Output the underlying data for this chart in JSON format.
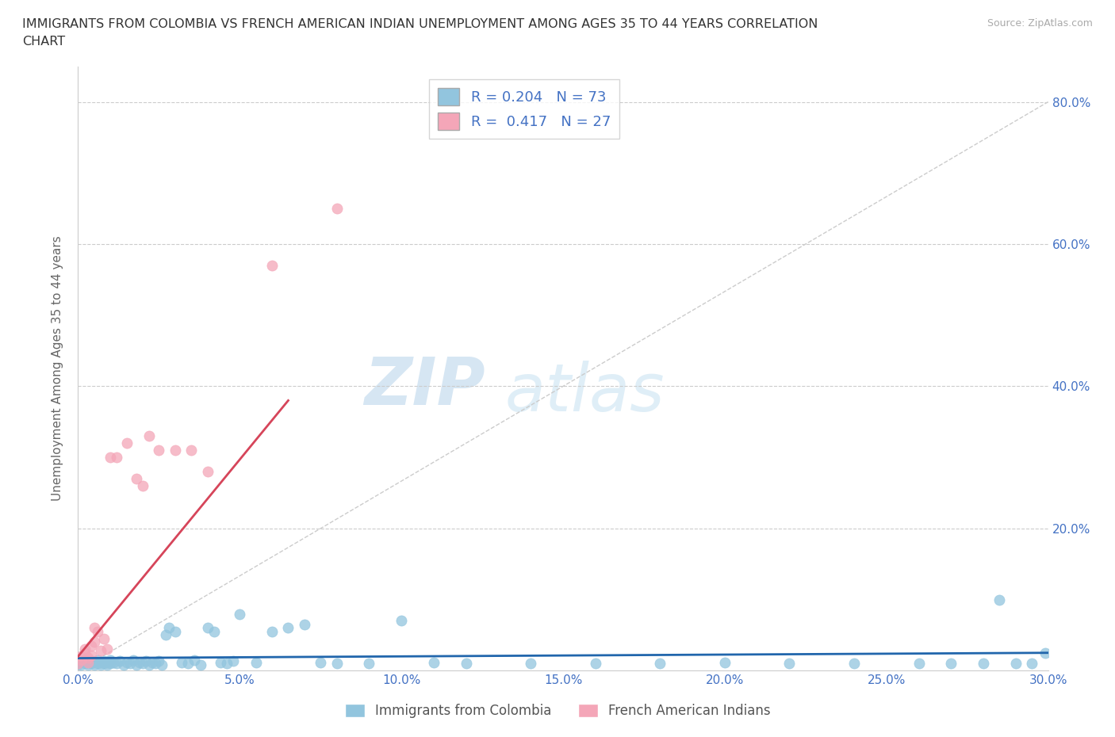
{
  "title_line1": "IMMIGRANTS FROM COLOMBIA VS FRENCH AMERICAN INDIAN UNEMPLOYMENT AMONG AGES 35 TO 44 YEARS CORRELATION",
  "title_line2": "CHART",
  "source_text": "Source: ZipAtlas.com",
  "ylabel": "Unemployment Among Ages 35 to 44 years",
  "xlim": [
    0.0,
    0.3
  ],
  "ylim": [
    0.0,
    0.85
  ],
  "xtick_labels": [
    "0.0%",
    "5.0%",
    "10.0%",
    "15.0%",
    "20.0%",
    "25.0%",
    "30.0%"
  ],
  "xtick_vals": [
    0.0,
    0.05,
    0.1,
    0.15,
    0.2,
    0.25,
    0.3
  ],
  "ytick_labels": [
    "20.0%",
    "40.0%",
    "60.0%",
    "80.0%"
  ],
  "ytick_vals": [
    0.2,
    0.4,
    0.6,
    0.8
  ],
  "color_blue": "#92c5de",
  "color_pink": "#f4a6b8",
  "color_blue_line": "#2166ac",
  "color_pink_line": "#d6455a",
  "color_diag": "#cccccc",
  "R_blue": 0.204,
  "N_blue": 73,
  "R_pink": 0.417,
  "N_pink": 27,
  "legend_label_blue": "Immigrants from Colombia",
  "legend_label_pink": "French American Indians",
  "watermark_zip": "ZIP",
  "watermark_atlas": "atlas",
  "blue_x": [
    0.0,
    0.001,
    0.001,
    0.002,
    0.002,
    0.003,
    0.003,
    0.004,
    0.004,
    0.005,
    0.005,
    0.006,
    0.006,
    0.007,
    0.007,
    0.008,
    0.008,
    0.009,
    0.009,
    0.01,
    0.01,
    0.011,
    0.012,
    0.013,
    0.014,
    0.015,
    0.016,
    0.017,
    0.018,
    0.019,
    0.02,
    0.021,
    0.022,
    0.023,
    0.024,
    0.025,
    0.026,
    0.027,
    0.028,
    0.03,
    0.032,
    0.034,
    0.036,
    0.038,
    0.04,
    0.042,
    0.044,
    0.046,
    0.048,
    0.05,
    0.055,
    0.06,
    0.065,
    0.07,
    0.075,
    0.08,
    0.09,
    0.1,
    0.11,
    0.12,
    0.14,
    0.16,
    0.18,
    0.2,
    0.22,
    0.24,
    0.26,
    0.27,
    0.28,
    0.285,
    0.29,
    0.295,
    0.299
  ],
  "blue_y": [
    0.01,
    0.008,
    0.012,
    0.01,
    0.015,
    0.008,
    0.012,
    0.01,
    0.014,
    0.008,
    0.013,
    0.01,
    0.015,
    0.008,
    0.012,
    0.01,
    0.014,
    0.008,
    0.012,
    0.01,
    0.015,
    0.012,
    0.01,
    0.014,
    0.008,
    0.012,
    0.01,
    0.015,
    0.008,
    0.012,
    0.01,
    0.014,
    0.008,
    0.012,
    0.01,
    0.014,
    0.008,
    0.05,
    0.06,
    0.055,
    0.012,
    0.01,
    0.015,
    0.008,
    0.06,
    0.055,
    0.012,
    0.01,
    0.014,
    0.08,
    0.012,
    0.055,
    0.06,
    0.065,
    0.012,
    0.01,
    0.01,
    0.07,
    0.012,
    0.01,
    0.01,
    0.01,
    0.01,
    0.012,
    0.01,
    0.01,
    0.01,
    0.01,
    0.01,
    0.1,
    0.01,
    0.01,
    0.025
  ],
  "pink_x": [
    0.0,
    0.001,
    0.001,
    0.002,
    0.002,
    0.003,
    0.003,
    0.004,
    0.004,
    0.005,
    0.005,
    0.006,
    0.007,
    0.008,
    0.009,
    0.01,
    0.012,
    0.015,
    0.018,
    0.02,
    0.022,
    0.025,
    0.03,
    0.035,
    0.04,
    0.06,
    0.08
  ],
  "pink_y": [
    0.01,
    0.015,
    0.02,
    0.025,
    0.03,
    0.012,
    0.018,
    0.022,
    0.035,
    0.04,
    0.06,
    0.055,
    0.028,
    0.045,
    0.03,
    0.3,
    0.3,
    0.32,
    0.27,
    0.26,
    0.33,
    0.31,
    0.31,
    0.31,
    0.28,
    0.57,
    0.65
  ],
  "pink_line_x0": 0.0,
  "pink_line_y0": 0.02,
  "pink_line_x1": 0.065,
  "pink_line_y1": 0.38
}
